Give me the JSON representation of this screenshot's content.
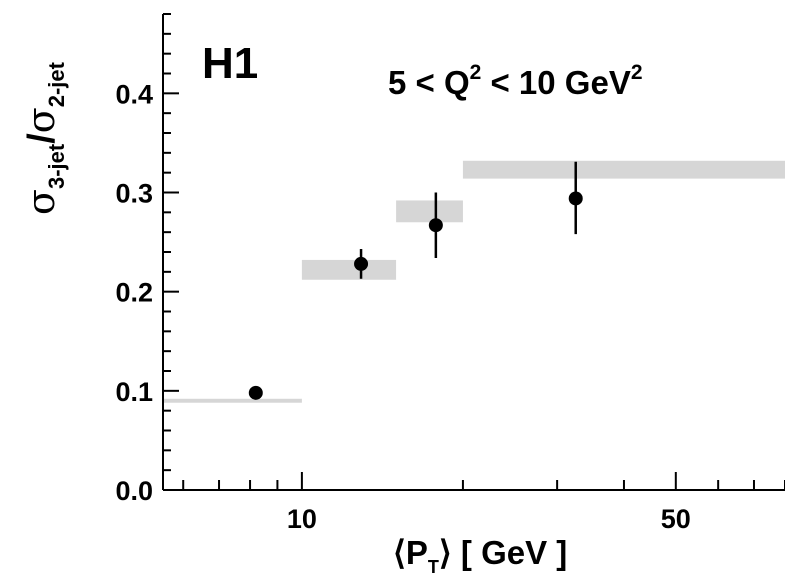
{
  "chart_data": {
    "type": "scatter",
    "title": "",
    "experiment_label": "H1",
    "region_label": {
      "prefix": "5 < Q",
      "exp1": "2",
      "middle": " < 10 GeV",
      "exp2": "2"
    },
    "xlabel": {
      "open": "⟨P",
      "sub": "T",
      "close": "⟩ [ GeV ]"
    },
    "ylabel": {
      "sigma": "σ",
      "sub1": "3-jet",
      "slash": "/",
      "sub2": "2-jet"
    },
    "x_scale": "log",
    "xlim": [
      5.5,
      80
    ],
    "ylim": [
      0,
      0.48
    ],
    "x_ticks": [
      {
        "value": 10,
        "label": "10"
      },
      {
        "value": 50,
        "label": "50"
      }
    ],
    "y_ticks": [
      {
        "value": 0.0,
        "label": "0.0"
      },
      {
        "value": 0.1,
        "label": "0.1"
      },
      {
        "value": 0.2,
        "label": "0.2"
      },
      {
        "value": 0.3,
        "label": "0.3"
      },
      {
        "value": 0.4,
        "label": "0.4"
      }
    ],
    "grid": false,
    "series": [
      {
        "points": [
          {
            "x": 8.2,
            "y": 0.098,
            "err_low": 0.0,
            "err_high": 0.0
          },
          {
            "x": 12.9,
            "y": 0.228,
            "err_low": 0.015,
            "err_high": 0.015
          },
          {
            "x": 17.8,
            "y": 0.267,
            "err_low": 0.033,
            "err_high": 0.033
          },
          {
            "x": 32.5,
            "y": 0.294,
            "err_low": 0.036,
            "err_high": 0.037
          }
        ]
      },
      {
        "type": "band",
        "bins": [
          {
            "x_low": 5.5,
            "x_high": 10,
            "y_low": 0.088,
            "y_high": 0.092
          },
          {
            "x_low": 10,
            "x_high": 15,
            "y_low": 0.212,
            "y_high": 0.232
          },
          {
            "x_low": 15,
            "x_high": 20,
            "y_low": 0.27,
            "y_high": 0.292
          },
          {
            "x_low": 20,
            "x_high": 80,
            "y_low": 0.314,
            "y_high": 0.332
          }
        ]
      }
    ],
    "colors": {
      "points": "#000000",
      "band": "#d6d6d6",
      "axis": "#000000"
    }
  }
}
